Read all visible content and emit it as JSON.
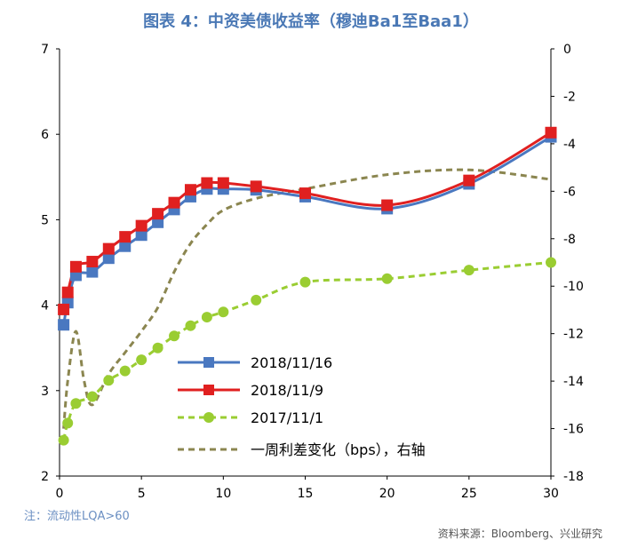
{
  "chart_data": {
    "type": "line",
    "title": "图表 4：中资美债收益率（穆迪Ba1至Baa1）",
    "note": "注：流动性LQA>60",
    "source": "资料来源：Bloomberg、兴业研究",
    "xlabel": "",
    "ylabel": "",
    "xlim": [
      0,
      30
    ],
    "ylim": [
      2,
      7
    ],
    "y2lim": [
      -18,
      0
    ],
    "x_ticks": [
      0,
      5,
      10,
      15,
      20,
      25,
      30
    ],
    "y_ticks": [
      2,
      3,
      4,
      5,
      6,
      7
    ],
    "y2_ticks": [
      -18,
      -16,
      -14,
      -12,
      -10,
      -8,
      -6,
      -4,
      -2,
      0
    ],
    "series": [
      {
        "name": "2018/11/16",
        "color": "#4a78c0",
        "style": "solid",
        "marker": "square",
        "axis": "left",
        "x": [
          0.25,
          0.5,
          1,
          2,
          3,
          4,
          5,
          6,
          7,
          8,
          9,
          10,
          12,
          15,
          20,
          25,
          30
        ],
        "y": [
          3.77,
          4.03,
          4.35,
          4.39,
          4.55,
          4.69,
          4.82,
          4.97,
          5.12,
          5.27,
          5.36,
          5.36,
          5.35,
          5.27,
          5.13,
          5.42,
          5.97
        ]
      },
      {
        "name": "2018/11/9",
        "color": "#e02020",
        "style": "solid",
        "marker": "square",
        "axis": "left",
        "x": [
          0.25,
          0.5,
          1,
          2,
          3,
          4,
          5,
          6,
          7,
          8,
          9,
          10,
          12,
          15,
          20,
          25,
          30
        ],
        "y": [
          3.95,
          4.15,
          4.45,
          4.51,
          4.66,
          4.8,
          4.93,
          5.07,
          5.2,
          5.35,
          5.43,
          5.43,
          5.39,
          5.31,
          5.17,
          5.46,
          6.02
        ]
      },
      {
        "name": "2017/11/1",
        "color": "#9acd32",
        "style": "dashed",
        "marker": "circle",
        "axis": "left",
        "x": [
          0.25,
          0.5,
          1,
          2,
          3,
          4,
          5,
          6,
          7,
          8,
          9,
          10,
          12,
          15,
          20,
          25,
          30
        ],
        "y": [
          2.42,
          2.62,
          2.85,
          2.93,
          3.12,
          3.23,
          3.36,
          3.5,
          3.64,
          3.76,
          3.86,
          3.92,
          4.06,
          4.27,
          4.31,
          4.41,
          4.5
        ]
      },
      {
        "name": "一周利差变化（bps），右轴",
        "color": "#8b8650",
        "style": "dashed",
        "marker": "none",
        "axis": "right",
        "x": [
          0.25,
          0.5,
          1,
          1.5,
          2,
          3,
          4,
          5,
          6,
          7,
          8,
          9,
          10,
          12,
          15,
          20,
          25,
          30
        ],
        "y": [
          -16.0,
          -14.0,
          -11.9,
          -14.0,
          -15.0,
          -13.7,
          -12.8,
          -11.9,
          -10.9,
          -9.4,
          -8.2,
          -7.4,
          -6.8,
          -6.3,
          -5.9,
          -5.3,
          -5.1,
          -5.5
        ]
      }
    ]
  }
}
